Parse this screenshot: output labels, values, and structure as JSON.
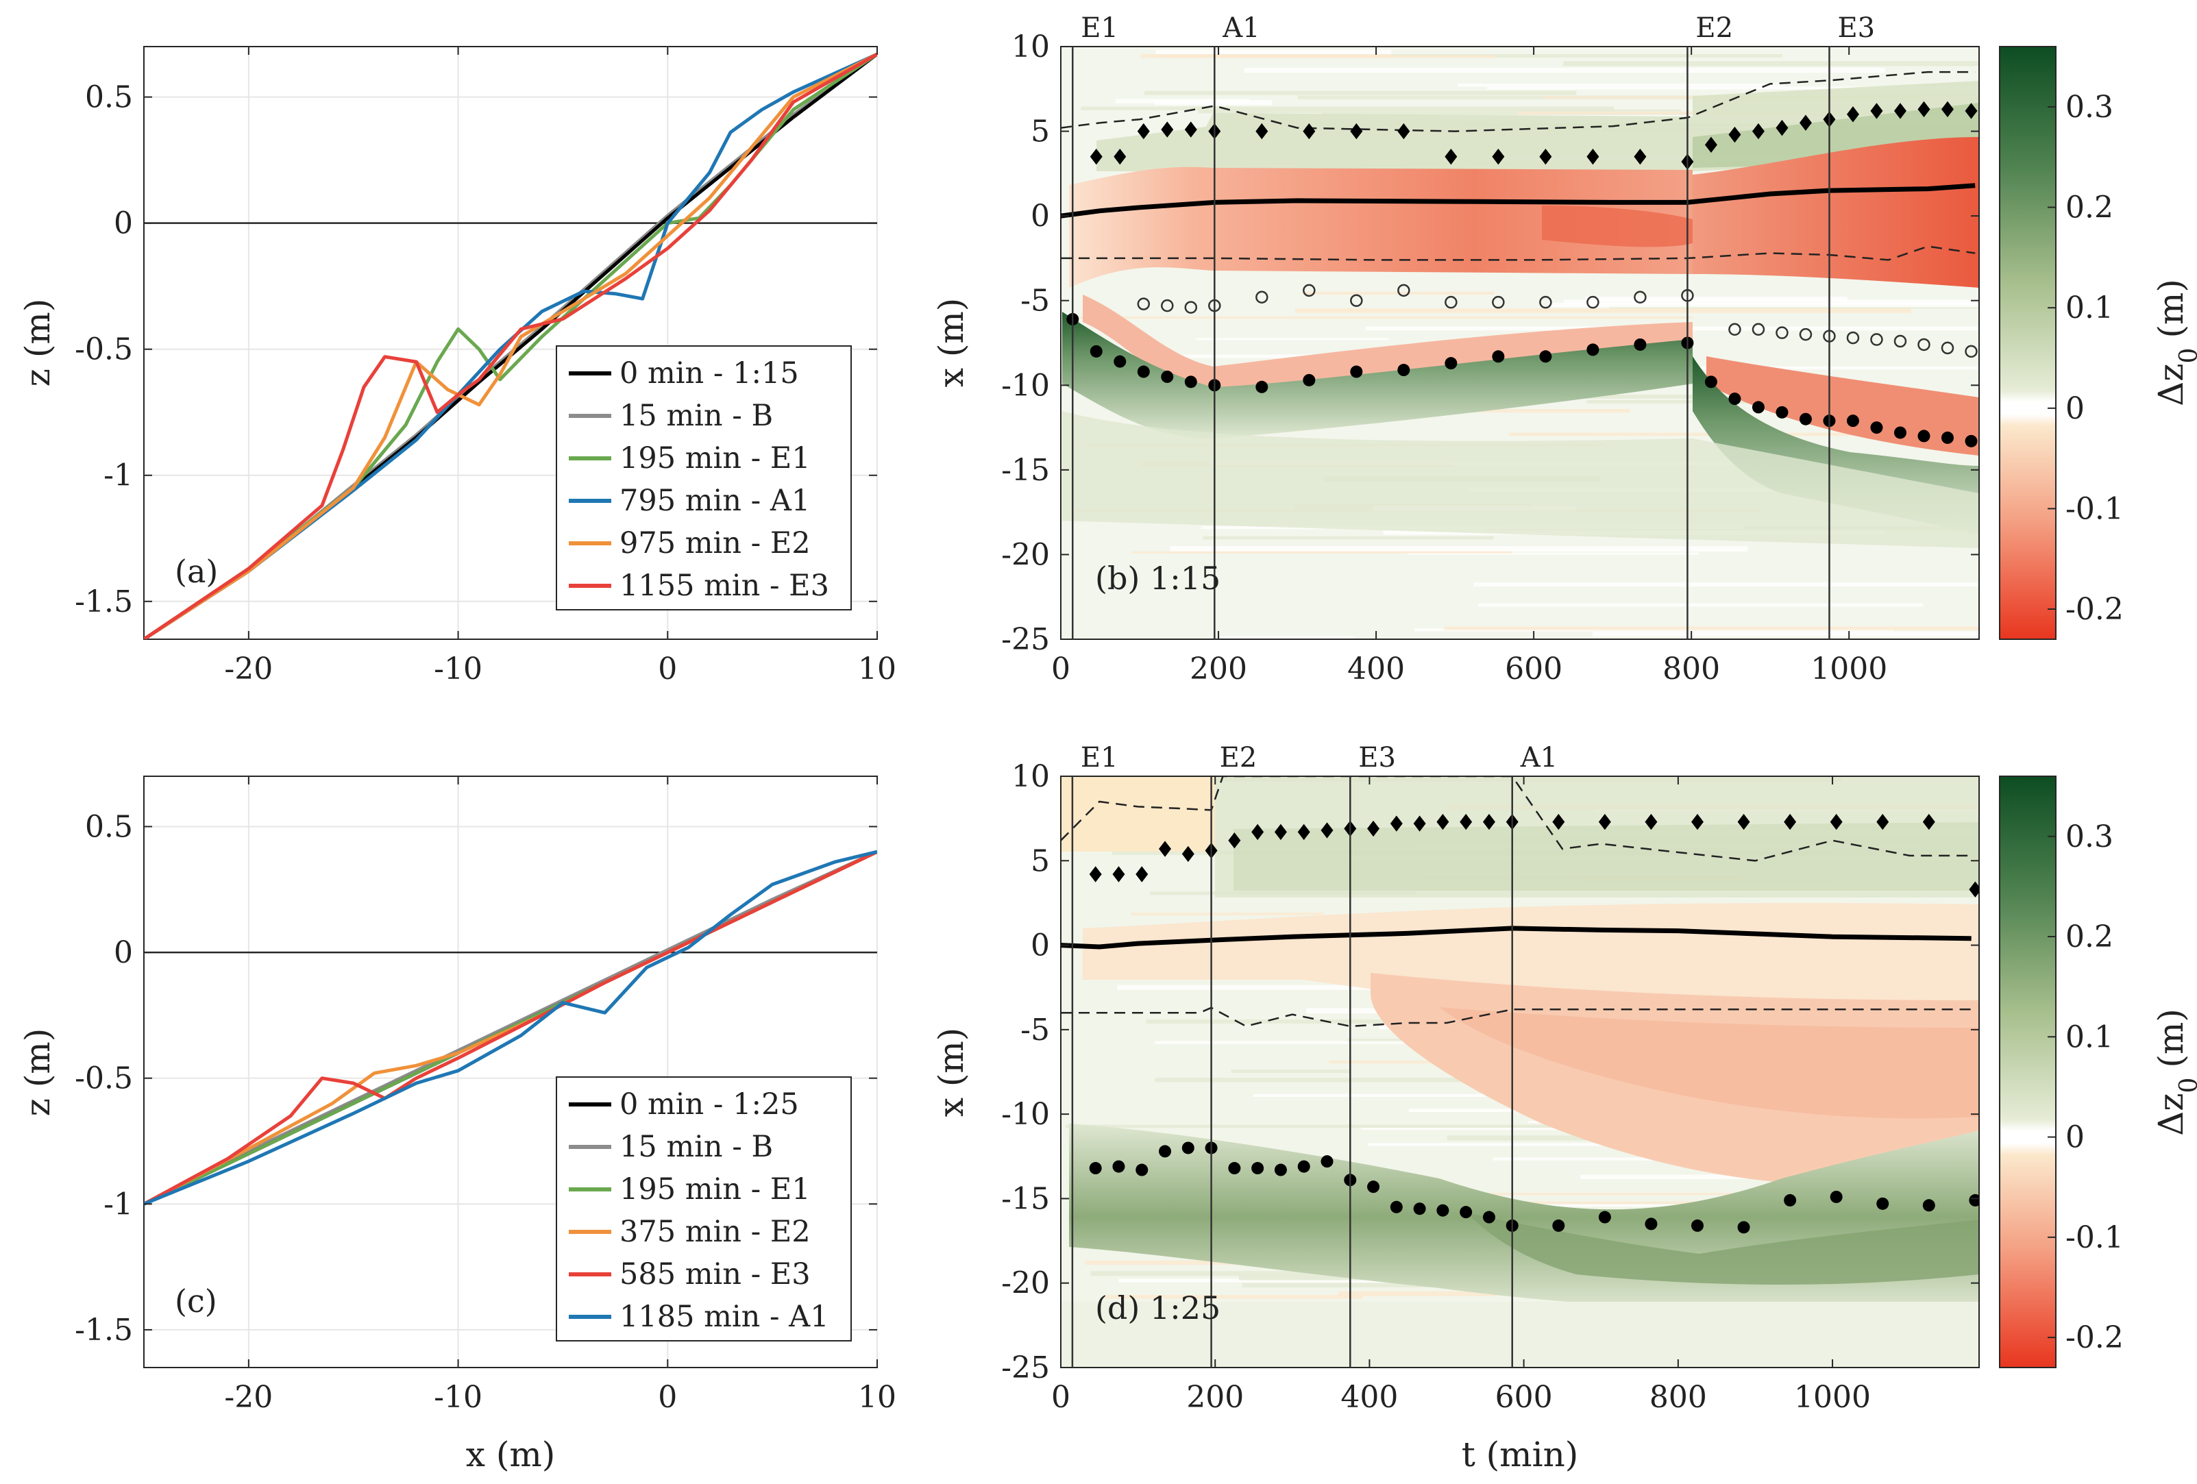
{
  "chart_data": [
    {
      "id": "a",
      "type": "line",
      "panel_label": "(a)",
      "xlabel": "",
      "ylabel": "z (m)",
      "xlim": [
        -25,
        10
      ],
      "ylim": [
        -1.65,
        0.7
      ],
      "xticks": [
        -20,
        -10,
        0,
        10
      ],
      "yticks": [
        0.5,
        0,
        -0.5,
        -1,
        -1.5
      ],
      "xtick_labels": [
        "-20",
        "-10",
        "0",
        "10"
      ],
      "ytick_labels": [
        "0.5",
        "0",
        "-0.5",
        "-1",
        "-1.5"
      ],
      "grid": true,
      "legend_position": "bottom-right",
      "legend": [
        "0 min - 1:15",
        "15 min - B",
        "195 min - E1",
        "795 min - A1",
        "975 min - E2",
        "1155 min - E3"
      ],
      "series": [
        {
          "name": "0 min - 1:15",
          "color": "#000000",
          "x": [
            -25,
            -20,
            -15,
            -12,
            -9,
            -6,
            -3,
            0,
            3,
            6,
            10
          ],
          "y": [
            -1.65,
            -1.38,
            -1.05,
            -0.85,
            -0.63,
            -0.42,
            -0.2,
            0.02,
            0.22,
            0.42,
            0.67
          ]
        },
        {
          "name": "15 min - B",
          "color": "#8c8c8c",
          "x": [
            -25,
            -20,
            -15,
            -12,
            -9,
            -6,
            -3,
            0,
            3,
            6,
            10
          ],
          "y": [
            -1.65,
            -1.38,
            -1.04,
            -0.84,
            -0.62,
            -0.41,
            -0.19,
            0.03,
            0.23,
            0.43,
            0.67
          ]
        },
        {
          "name": "195 min - E1",
          "color": "#6aa84f",
          "x": [
            -25,
            -20,
            -15,
            -12.5,
            -11,
            -10,
            -9,
            -8,
            -6,
            -4,
            -2,
            0,
            1.5,
            3,
            6,
            10
          ],
          "y": [
            -1.65,
            -1.37,
            -1.05,
            -0.8,
            -0.55,
            -0.42,
            -0.5,
            -0.62,
            -0.45,
            -0.3,
            -0.15,
            0.0,
            0.02,
            0.15,
            0.45,
            0.67
          ]
        },
        {
          "name": "795 min - A1",
          "color": "#1f77b4",
          "x": [
            -25,
            -20,
            -15,
            -12,
            -10,
            -8,
            -6,
            -4,
            -2.5,
            -1.2,
            0,
            2,
            3,
            4.5,
            6,
            10
          ],
          "y": [
            -1.65,
            -1.38,
            -1.06,
            -0.86,
            -0.68,
            -0.5,
            -0.35,
            -0.27,
            -0.28,
            -0.3,
            0.0,
            0.2,
            0.36,
            0.45,
            0.52,
            0.67
          ]
        },
        {
          "name": "975 min - E2",
          "color": "#f0913a",
          "x": [
            -25,
            -20,
            -15,
            -13.5,
            -12,
            -10.5,
            -9,
            -8,
            -7,
            -5,
            -2,
            0,
            2,
            4,
            6,
            10
          ],
          "y": [
            -1.65,
            -1.38,
            -1.05,
            -0.85,
            -0.55,
            -0.66,
            -0.72,
            -0.6,
            -0.45,
            -0.35,
            -0.2,
            -0.05,
            0.1,
            0.3,
            0.5,
            0.67
          ]
        },
        {
          "name": "1155 min - E3",
          "color": "#e8413a",
          "x": [
            -25,
            -20,
            -16.5,
            -15.5,
            -14.5,
            -13.5,
            -12,
            -11,
            -10,
            -9,
            -7,
            -5,
            -2,
            0,
            2,
            4,
            6,
            10
          ],
          "y": [
            -1.65,
            -1.37,
            -1.12,
            -0.9,
            -0.65,
            -0.53,
            -0.55,
            -0.75,
            -0.68,
            -0.62,
            -0.42,
            -0.38,
            -0.22,
            -0.1,
            0.05,
            0.25,
            0.48,
            0.67
          ]
        }
      ]
    },
    {
      "id": "b",
      "type": "heatmap",
      "panel_label": "(b) 1:15",
      "xlabel": "",
      "ylabel": "x (m)",
      "xlim": [
        0,
        1165
      ],
      "ylim": [
        -25,
        10
      ],
      "xticks": [
        0,
        200,
        400,
        600,
        800,
        1000
      ],
      "yticks": [
        10,
        5,
        0,
        -5,
        -10,
        -15,
        -20,
        -25
      ],
      "xtick_labels": [
        "0",
        "200",
        "400",
        "600",
        "800",
        "1000"
      ],
      "ytick_labels": [
        "10",
        "5",
        "0",
        "-5",
        "-10",
        "-15",
        "-20",
        "-25"
      ],
      "events": [
        {
          "t": 15,
          "label": "E1"
        },
        {
          "t": 195,
          "label": "A1"
        },
        {
          "t": 795,
          "label": "E2"
        },
        {
          "t": 975,
          "label": "E3"
        }
      ],
      "shoreline": {
        "t": [
          0,
          50,
          100,
          195,
          300,
          500,
          700,
          795,
          900,
          975,
          1100,
          1160
        ],
        "x": [
          0,
          0.3,
          0.5,
          0.8,
          0.9,
          0.85,
          0.8,
          0.8,
          1.3,
          1.5,
          1.6,
          1.8
        ]
      },
      "upper_dashed": {
        "t": [
          0,
          50,
          100,
          195,
          300,
          500,
          700,
          795,
          900,
          975,
          1100,
          1160
        ],
        "x": [
          5.2,
          5.5,
          5.7,
          6.5,
          5.2,
          5,
          5.3,
          5.8,
          7.8,
          8,
          8.5,
          8.5
        ]
      },
      "lower_dashed": {
        "t": [
          0,
          195,
          400,
          600,
          795,
          900,
          975,
          1050,
          1100,
          1160
        ],
        "x": [
          -2.5,
          -2.5,
          -2.6,
          -2.6,
          -2.5,
          -2.2,
          -2.3,
          -2.6,
          -1.8,
          -2.2
        ]
      },
      "diamonds": {
        "t": [
          45,
          75,
          105,
          135,
          165,
          195,
          255,
          315,
          375,
          435,
          495,
          555,
          615,
          675,
          735,
          795,
          825,
          855,
          885,
          915,
          945,
          975,
          1005,
          1035,
          1065,
          1095,
          1125,
          1155
        ],
        "x": [
          3.5,
          3.5,
          5,
          5.1,
          5.1,
          5,
          5,
          5,
          5,
          5,
          3.5,
          3.5,
          3.5,
          3.5,
          3.5,
          3.2,
          4.2,
          4.8,
          5,
          5.2,
          5.5,
          5.7,
          6,
          6.2,
          6.2,
          6.3,
          6.3,
          6.2
        ]
      },
      "open_circles": {
        "t": [
          105,
          135,
          165,
          195,
          255,
          315,
          375,
          435,
          495,
          555,
          615,
          675,
          735,
          795,
          855,
          885,
          915,
          945,
          975,
          1005,
          1035,
          1065,
          1095,
          1125,
          1155
        ],
        "x": [
          -5.2,
          -5.3,
          -5.4,
          -5.3,
          -4.8,
          -4.4,
          -5,
          -4.4,
          -5.1,
          -5.1,
          -5.1,
          -5.1,
          -4.8,
          -4.7,
          -6.7,
          -6.7,
          -6.9,
          -7,
          -7.1,
          -7.2,
          -7.3,
          -7.4,
          -7.6,
          -7.8,
          -8
        ]
      },
      "filled_circles": {
        "t": [
          15,
          45,
          75,
          105,
          135,
          165,
          195,
          255,
          315,
          375,
          435,
          495,
          555,
          615,
          675,
          735,
          795,
          825,
          855,
          885,
          915,
          945,
          975,
          1005,
          1035,
          1065,
          1095,
          1125,
          1155
        ],
        "x": [
          -6.1,
          -8,
          -8.6,
          -9.2,
          -9.5,
          -9.8,
          -10,
          -10.1,
          -9.7,
          -9.2,
          -9.1,
          -8.7,
          -8.3,
          -8.3,
          -7.9,
          -7.6,
          -7.5,
          -9.8,
          -10.8,
          -11.3,
          -11.6,
          -12,
          -12.1,
          -12.1,
          -12.5,
          -12.8,
          -13,
          -13.1,
          -13.3
        ]
      }
    },
    {
      "id": "c",
      "type": "line",
      "panel_label": "(c)",
      "xlabel": "x (m)",
      "ylabel": "z (m)",
      "xlim": [
        -25,
        10
      ],
      "ylim": [
        -1.65,
        0.7
      ],
      "xticks": [
        -20,
        -10,
        0,
        10
      ],
      "yticks": [
        0.5,
        0,
        -0.5,
        -1,
        -1.5
      ],
      "xtick_labels": [
        "-20",
        "-10",
        "0",
        "10"
      ],
      "ytick_labels": [
        "0.5",
        "0",
        "-0.5",
        "-1",
        "-1.5"
      ],
      "grid": true,
      "legend_position": "bottom-right",
      "legend": [
        "0 min - 1:25",
        "15 min - B",
        "195 min - E1",
        "375 min - E2",
        "585 min - E3",
        "1185 min - A1"
      ],
      "series": [
        {
          "name": "0 min - 1:25",
          "color": "#000000",
          "x": [
            -25,
            -20,
            -15,
            -10,
            -5,
            0,
            5,
            10
          ],
          "y": [
            -1.0,
            -0.8,
            -0.6,
            -0.4,
            -0.2,
            0.0,
            0.2,
            0.4
          ]
        },
        {
          "name": "15 min - B",
          "color": "#8c8c8c",
          "x": [
            -25,
            -20,
            -15,
            -10,
            -5,
            0,
            5,
            10
          ],
          "y": [
            -1.0,
            -0.79,
            -0.59,
            -0.39,
            -0.19,
            0.01,
            0.21,
            0.4
          ]
        },
        {
          "name": "195 min - E1",
          "color": "#6aa84f",
          "x": [
            -25,
            -20,
            -15,
            -12,
            -9,
            -6,
            -3,
            0,
            5,
            10
          ],
          "y": [
            -1.0,
            -0.8,
            -0.6,
            -0.48,
            -0.36,
            -0.24,
            -0.12,
            0.0,
            0.2,
            0.4
          ]
        },
        {
          "name": "375 min - E2",
          "color": "#f0913a",
          "x": [
            -25,
            -20,
            -16,
            -14,
            -12,
            -10,
            -6,
            -3,
            0,
            5,
            10
          ],
          "y": [
            -1.0,
            -0.78,
            -0.6,
            -0.48,
            -0.45,
            -0.4,
            -0.25,
            -0.12,
            0.0,
            0.2,
            0.4
          ]
        },
        {
          "name": "585 min - E3",
          "color": "#e8413a",
          "x": [
            -25,
            -21,
            -18,
            -16.5,
            -15,
            -13.5,
            -12,
            -10,
            -6,
            -3,
            0,
            5,
            10
          ],
          "y": [
            -1.0,
            -0.82,
            -0.65,
            -0.5,
            -0.52,
            -0.58,
            -0.5,
            -0.42,
            -0.25,
            -0.12,
            0.0,
            0.2,
            0.4
          ]
        },
        {
          "name": "1185 min - A1",
          "color": "#1f77b4",
          "x": [
            -25,
            -20,
            -15,
            -12,
            -10,
            -7,
            -5,
            -3,
            -1,
            1,
            3,
            5,
            8,
            10
          ],
          "y": [
            -1.0,
            -0.83,
            -0.64,
            -0.52,
            -0.47,
            -0.33,
            -0.2,
            -0.24,
            -0.06,
            0.02,
            0.15,
            0.27,
            0.36,
            0.4
          ]
        }
      ]
    },
    {
      "id": "d",
      "type": "heatmap",
      "panel_label": "(d) 1:25",
      "xlabel": "t (min)",
      "ylabel": "x (m)",
      "xlim": [
        0,
        1190
      ],
      "ylim": [
        -25,
        10
      ],
      "xticks": [
        0,
        200,
        400,
        600,
        800,
        1000
      ],
      "yticks": [
        10,
        5,
        0,
        -5,
        -10,
        -15,
        -20,
        -25
      ],
      "xtick_labels": [
        "0",
        "200",
        "400",
        "600",
        "800",
        "1000"
      ],
      "ytick_labels": [
        "10",
        "5",
        "0",
        "-5",
        "-10",
        "-15",
        "-20",
        "-25"
      ],
      "events": [
        {
          "t": 15,
          "label": "E1"
        },
        {
          "t": 195,
          "label": "E2"
        },
        {
          "t": 375,
          "label": "E3"
        },
        {
          "t": 585,
          "label": "A1"
        }
      ],
      "shoreline": {
        "t": [
          0,
          50,
          100,
          195,
          300,
          375,
          450,
          585,
          700,
          800,
          1000,
          1180
        ],
        "x": [
          0,
          -0.1,
          0.1,
          0.3,
          0.5,
          0.6,
          0.7,
          1.0,
          0.9,
          0.85,
          0.5,
          0.4
        ]
      },
      "upper_dashed": {
        "t": [
          0,
          50,
          100,
          150,
          195,
          210,
          585,
          600,
          650,
          700,
          800,
          900,
          1000,
          1100,
          1180
        ],
        "x": [
          6.2,
          8.5,
          8.2,
          8.1,
          8,
          10,
          10,
          9,
          5.7,
          6,
          5.5,
          5,
          6.2,
          5.3,
          5.3
        ]
      },
      "lower_dashed": {
        "t": [
          0,
          180,
          195,
          240,
          300,
          375,
          450,
          500,
          585,
          800,
          1000,
          1180
        ],
        "x": [
          -4,
          -4,
          -3.7,
          -4.8,
          -4.1,
          -4.8,
          -4.6,
          -4.6,
          -3.8,
          -3.8,
          -3.8,
          -3.8
        ]
      },
      "diamonds": {
        "t": [
          45,
          75,
          105,
          135,
          165,
          195,
          225,
          255,
          285,
          315,
          345,
          375,
          405,
          435,
          465,
          495,
          525,
          555,
          585,
          645,
          705,
          765,
          825,
          885,
          945,
          1005,
          1065,
          1125,
          1185
        ],
        "x": [
          4.2,
          4.2,
          4.2,
          5.7,
          5.4,
          5.6,
          6.2,
          6.7,
          6.7,
          6.7,
          6.8,
          6.9,
          6.9,
          7.2,
          7.2,
          7.3,
          7.3,
          7.3,
          7.3,
          7.3,
          7.3,
          7.3,
          7.3,
          7.3,
          7.3,
          7.3,
          7.3,
          7.3,
          3.3
        ]
      },
      "filled_circles": {
        "t": [
          45,
          75,
          105,
          135,
          165,
          195,
          225,
          255,
          285,
          315,
          345,
          375,
          405,
          435,
          465,
          495,
          525,
          555,
          585,
          645,
          705,
          765,
          825,
          885,
          945,
          1005,
          1065,
          1125,
          1185
        ],
        "x": [
          -13.2,
          -13.1,
          -13.3,
          -12.2,
          -12,
          -12,
          -13.2,
          -13.2,
          -13.3,
          -13.1,
          -12.8,
          -13.9,
          -14.3,
          -15.5,
          -15.6,
          -15.7,
          -15.8,
          -16.1,
          -16.6,
          -16.6,
          -16.1,
          -16.5,
          -16.6,
          -16.7,
          -15.1,
          -14.9,
          -15.3,
          -15.4,
          -15.1
        ]
      }
    },
    {
      "id": "colorbar",
      "type": "colorbar",
      "label": "Δz",
      "label_sub": "0",
      "label_unit": "(m)",
      "range": [
        -0.23,
        0.36
      ],
      "ticks": [
        0.3,
        0.2,
        0.1,
        0,
        -0.1,
        -0.2
      ],
      "tick_labels": [
        "0.3",
        "0.2",
        "0.1",
        "0",
        "-0.1",
        "-0.2"
      ],
      "colors": {
        "neg_strong": "#e8361f",
        "neg_mid": "#f5a889",
        "neg_weak": "#fbe6c9",
        "zero": "#ffffff",
        "pos_weak": "#e3ead3",
        "pos_mid": "#94b07a",
        "pos_strong": "#0d4d22"
      }
    }
  ]
}
